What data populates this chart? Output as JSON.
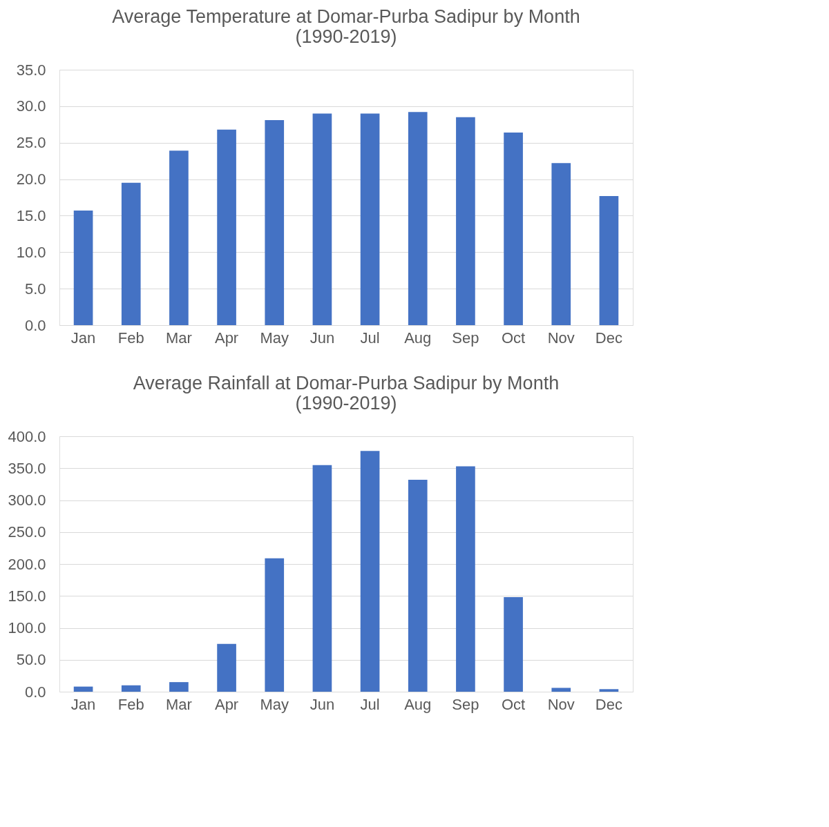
{
  "chart_data": [
    {
      "type": "bar",
      "title": "Average Temperature at Domar-Purba Sadipur by Month\n(1990-2019)",
      "categories": [
        "Jan",
        "Feb",
        "Mar",
        "Apr",
        "May",
        "Jun",
        "Jul",
        "Aug",
        "Sep",
        "Oct",
        "Nov",
        "Dec"
      ],
      "values": [
        15.7,
        19.5,
        23.9,
        26.8,
        28.1,
        29.0,
        29.0,
        29.2,
        28.5,
        26.4,
        22.2,
        17.7
      ],
      "color": "#4472c4",
      "ylim": [
        0,
        35
      ],
      "yticks": [
        {
          "value": 0,
          "label": "0.0"
        },
        {
          "value": 5,
          "label": "5.0"
        },
        {
          "value": 10,
          "label": "10.0"
        },
        {
          "value": 15,
          "label": "15.0"
        },
        {
          "value": 20,
          "label": "20.0"
        },
        {
          "value": 25,
          "label": "25.0"
        },
        {
          "value": 30,
          "label": "30.0"
        },
        {
          "value": 35,
          "label": "35.0"
        }
      ],
      "grid": "y"
    },
    {
      "type": "bar",
      "title": "Average Rainfall at Domar-Purba Sadipur by Month\n(1990-2019)",
      "categories": [
        "Jan",
        "Feb",
        "Mar",
        "Apr",
        "May",
        "Jun",
        "Jul",
        "Aug",
        "Sep",
        "Oct",
        "Nov",
        "Dec"
      ],
      "values": [
        8,
        10,
        15,
        75,
        209,
        355,
        377,
        332,
        353,
        148,
        6,
        4
      ],
      "color": "#4472c4",
      "ylim": [
        0,
        400
      ],
      "yticks": [
        {
          "value": 0,
          "label": "0.0"
        },
        {
          "value": 50,
          "label": "50.0"
        },
        {
          "value": 100,
          "label": "100.0"
        },
        {
          "value": 150,
          "label": "150.0"
        },
        {
          "value": 200,
          "label": "200.0"
        },
        {
          "value": 250,
          "label": "250.0"
        },
        {
          "value": 300,
          "label": "300.0"
        },
        {
          "value": 350,
          "label": "350.0"
        },
        {
          "value": 400,
          "label": "400.0"
        }
      ],
      "grid": "y"
    }
  ]
}
